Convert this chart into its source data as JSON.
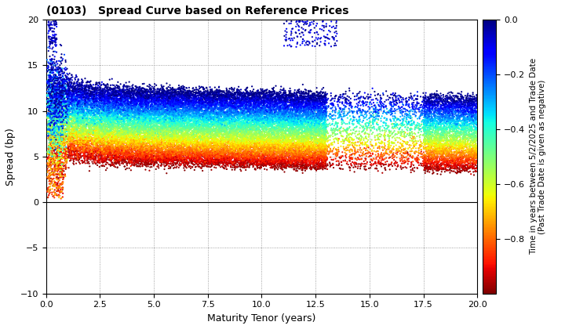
{
  "title": "(0103)   Spread Curve based on Reference Prices",
  "xlabel": "Maturity Tenor (years)",
  "ylabel": "Spread (bp)",
  "colorbar_label": "Time in years between 5/2/2025 and Trade Date\n(Past Trade Date is given as negative)",
  "xlim": [
    0.0,
    20.0
  ],
  "ylim": [
    -10.0,
    20.0
  ],
  "xticks": [
    0.0,
    2.5,
    5.0,
    7.5,
    10.0,
    12.5,
    15.0,
    17.5,
    20.0
  ],
  "yticks": [
    -10.0,
    -5.0,
    0.0,
    5.0,
    10.0,
    15.0,
    20.0
  ],
  "cmap": "jet_r",
  "vmin": -1.0,
  "vmax": 0.0,
  "colorbar_ticks": [
    0.0,
    -0.2,
    -0.4,
    -0.6,
    -0.8
  ],
  "background_color": "#ffffff",
  "grid_color": "#888888",
  "point_size": 2.5,
  "seed": 42
}
